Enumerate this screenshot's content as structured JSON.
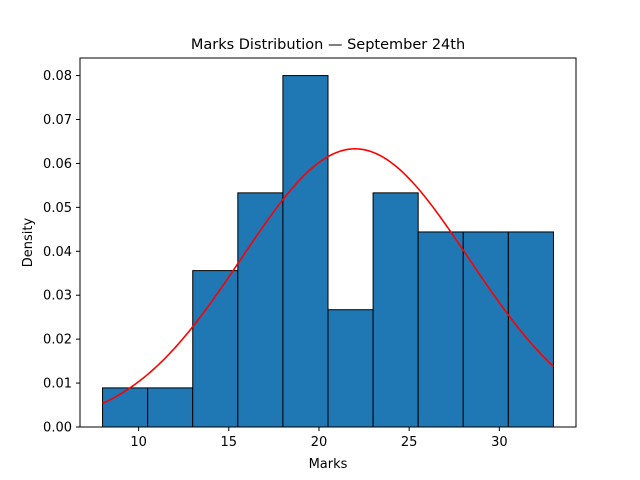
{
  "chart_data": {
    "type": "bar",
    "title": "Marks Distribution — September 24th",
    "xlabel": "Marks",
    "ylabel": "Density",
    "xlim": [
      6.75,
      34.25
    ],
    "ylim": [
      0,
      0.084
    ],
    "xticks": [
      10,
      15,
      20,
      25,
      30
    ],
    "yticks": [
      0.0,
      0.01,
      0.02,
      0.03,
      0.04,
      0.05,
      0.06,
      0.07,
      0.08
    ],
    "ytick_labels": [
      "0.00",
      "0.01",
      "0.02",
      "0.03",
      "0.04",
      "0.05",
      "0.06",
      "0.07",
      "0.08"
    ],
    "grid": false,
    "series": [
      {
        "type": "histogram",
        "bin_edges": [
          8,
          10.5,
          13,
          15.5,
          18,
          20.5,
          23,
          25.5,
          28,
          30.5,
          33
        ],
        "values": [
          0.0089,
          0.0089,
          0.0356,
          0.0533,
          0.08,
          0.0267,
          0.0533,
          0.0444,
          0.0444,
          0.0444
        ],
        "color": "#1f77b4",
        "edgecolor": "#000000"
      },
      {
        "type": "line",
        "curve": "normal-pdf",
        "mean": 22.0,
        "std": 6.3,
        "x_range": [
          8,
          33
        ],
        "color": "#ff0000"
      }
    ]
  }
}
